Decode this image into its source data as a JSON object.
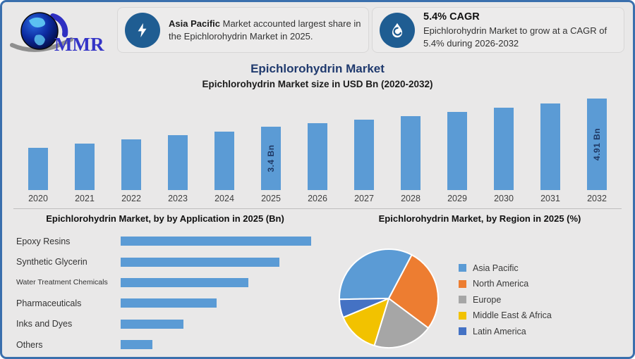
{
  "brand": {
    "name": "MMR"
  },
  "header": {
    "highlight1": {
      "lead": "Asia Pacific",
      "text": " Market accounted largest share in the Epichlorohydrin Market in 2025."
    },
    "highlight2": {
      "heading": "5.4% CAGR",
      "body": "Epichlorohydrin Market to grow at a CAGR of 5.4% during 2026-2032"
    }
  },
  "title": "Epichlorohydrin Market",
  "subtitle": "Epichlorohydrin Market size in USD Bn (2020-2032)",
  "colors": {
    "background": "#E9E8E8",
    "frame_border": "#3A6FAD",
    "bar_blue": "#5B9BD5",
    "title_navy": "#203A6E",
    "bar_label_navy": "#1F3864",
    "icon_circle_blue": "#1F5D92"
  },
  "chart_data": [
    {
      "type": "bar",
      "title": "Epichlorohydrin Market size in USD Bn (2020-2032)",
      "categories": [
        "2020",
        "2021",
        "2022",
        "2023",
        "2024",
        "2025",
        "2026",
        "2027",
        "2028",
        "2029",
        "2030",
        "2031",
        "2032"
      ],
      "values": [
        2.25,
        2.48,
        2.72,
        2.93,
        3.13,
        3.4,
        3.58,
        3.78,
        3.98,
        4.2,
        4.43,
        4.66,
        4.91
      ],
      "unit": "USD Bn",
      "ylabel": "",
      "xlabel": "",
      "ylim": [
        0,
        4.91
      ],
      "grid": false,
      "data_labels": {
        "2025": "3.4 Bn",
        "2032": "4.91 Bn"
      },
      "bar_color": "#5B9BD5"
    },
    {
      "type": "bar",
      "orientation": "horizontal",
      "title": "Epichlorohydrin Market, by by Application in 2025 (Bn)",
      "categories": [
        "Epoxy Resins",
        "Synthetic Glycerin",
        "Water Treatment Chemicals",
        "Pharmaceuticals",
        "Inks and Dyes",
        "Others"
      ],
      "values": [
        0.97,
        0.81,
        0.65,
        0.49,
        0.32,
        0.16
      ],
      "unit": "Bn",
      "xlim": [
        0,
        0.97
      ],
      "grid": false,
      "bar_color": "#5B9BD5"
    },
    {
      "type": "pie",
      "title": "Epichlorohydrin Market, by Region in 2025 (%)",
      "labels": [
        "Asia Pacific",
        "North America",
        "Europe",
        "Middle East & Africa",
        "Latin America"
      ],
      "values": [
        33,
        27.5,
        19.5,
        14,
        6
      ],
      "colors": [
        "#5B9BD5",
        "#ED7D31",
        "#A6A6A6",
        "#F2C200",
        "#4472C4"
      ],
      "start_angle_deg": 269,
      "legend_position": "right"
    }
  ]
}
